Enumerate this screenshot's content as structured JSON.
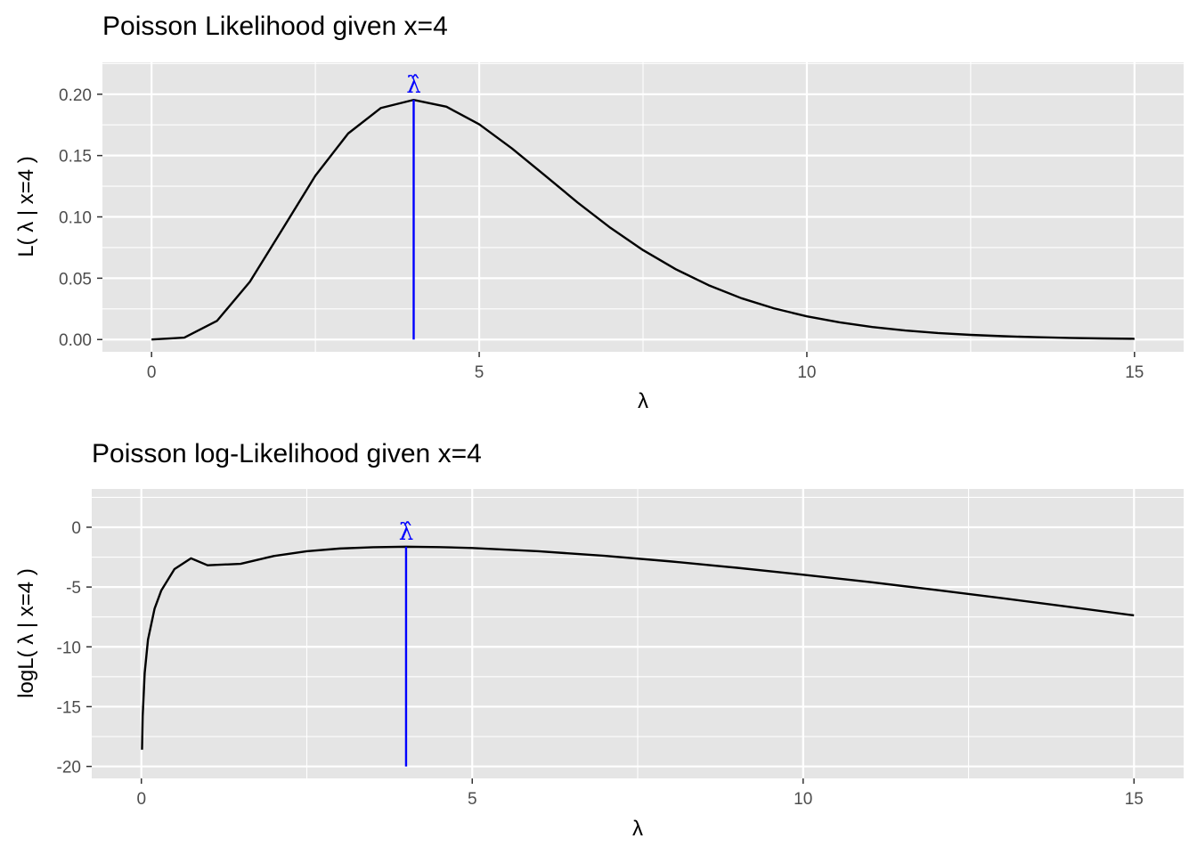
{
  "colors": {
    "panel": "#e5e5e5",
    "grid": "#ffffff",
    "curve": "#000000",
    "mle": "#0000ff",
    "tick_text": "#4d4d4d"
  },
  "chart_data": [
    {
      "type": "line",
      "title": "Poisson Likelihood given x=4",
      "xlabel": "λ",
      "ylabel": "L( λ | x=4 )",
      "xlim": [
        -0.75,
        15.75
      ],
      "ylim": [
        -0.01,
        0.226
      ],
      "xticks": [
        0,
        5,
        10,
        15
      ],
      "xtick_labels": [
        "0",
        "5",
        "10",
        "15"
      ],
      "yticks": [
        0,
        0.05,
        0.1,
        0.15,
        0.2
      ],
      "ytick_labels": [
        "0.00",
        "0.05",
        "0.10",
        "0.15",
        "0.20"
      ],
      "grid": true,
      "series": [
        {
          "x": [
            0,
            0.5,
            1,
            1.5,
            2,
            2.5,
            3,
            3.5,
            4,
            4.5,
            5,
            5.5,
            6,
            6.5,
            7,
            7.5,
            8,
            8.5,
            9,
            9.5,
            10,
            10.5,
            11,
            11.5,
            12,
            12.5,
            13,
            13.5,
            14,
            14.5,
            15
          ],
          "y": [
            0,
            0.0016,
            0.0153,
            0.0471,
            0.0902,
            0.1336,
            0.168,
            0.1888,
            0.1954,
            0.1898,
            0.1755,
            0.1558,
            0.1339,
            0.1118,
            0.0912,
            0.0729,
            0.0573,
            0.0443,
            0.0337,
            0.0254,
            0.0189,
            0.014,
            0.0102,
            0.0074,
            0.0053,
            0.0038,
            0.0027,
            0.0019,
            0.0013,
            0.0009,
            0.0006
          ]
        }
      ],
      "mle_line": {
        "x": 4,
        "y_from": 0,
        "y_to": 0.1954,
        "label": "λ̂"
      }
    },
    {
      "type": "line",
      "title": "Poisson log-Likelihood given x=4",
      "xlabel": "λ",
      "ylabel": "logL( λ | x=4 )",
      "xlim": [
        -0.75,
        15.75
      ],
      "ylim": [
        -21,
        3.2
      ],
      "xticks": [
        0,
        5,
        10,
        15
      ],
      "xtick_labels": [
        "0",
        "5",
        "10",
        "15"
      ],
      "yticks": [
        -20,
        -15,
        -10,
        -5,
        0
      ],
      "ytick_labels": [
        "-20",
        "-15",
        "-10",
        "-5",
        "0"
      ],
      "grid": true,
      "series": [
        {
          "x": [
            0.01,
            0.02,
            0.05,
            0.1,
            0.2,
            0.3,
            0.5,
            0.75,
            1,
            1.5,
            2,
            2.5,
            3,
            3.5,
            4,
            4.5,
            5,
            6,
            7,
            8,
            9,
            10,
            11,
            12,
            13,
            14,
            15
          ],
          "y": [
            -18.6,
            -15.8,
            -12.2,
            -9.4,
            -6.8,
            -5.3,
            -3.5,
            -2.6,
            -3.18,
            -3.06,
            -2.41,
            -2.01,
            -1.78,
            -1.67,
            -1.63,
            -1.66,
            -1.74,
            -2.01,
            -2.39,
            -2.86,
            -3.39,
            -3.97,
            -4.58,
            -5.24,
            -5.93,
            -6.64,
            -7.37
          ]
        }
      ],
      "mle_line": {
        "x": 4,
        "y_from": -20,
        "y_to": -1.63,
        "label": "λ̂"
      }
    }
  ]
}
